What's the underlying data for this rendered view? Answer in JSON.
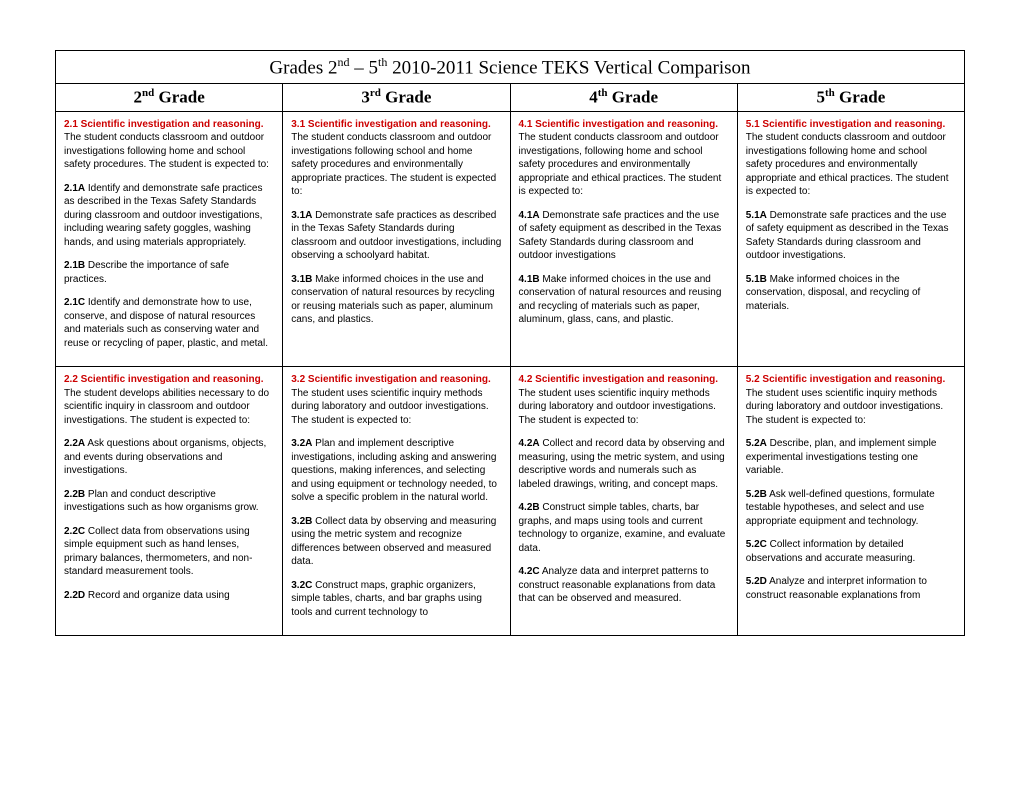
{
  "colors": {
    "heading_red": "#cc0000",
    "text": "#000000",
    "border": "#000000",
    "background": "#ffffff"
  },
  "typography": {
    "title_fontsize": 19,
    "grade_header_fontsize": 17,
    "body_fontsize": 10,
    "title_font": "Times New Roman",
    "body_font": "Arial"
  },
  "title": {
    "prefix": "Grades 2",
    "sup1": "nd",
    "mid": " – 5",
    "sup2": "th",
    "suffix": "   2010-2011 Science TEKS  Vertical Comparison"
  },
  "grade_headers": [
    {
      "num": "2",
      "sup": "nd",
      "label": " Grade"
    },
    {
      "num": "3",
      "sup": "rd",
      "label": " Grade"
    },
    {
      "num": "4",
      "sup": "th",
      "label": "  Grade"
    },
    {
      "num": "5",
      "sup": "th",
      "label": "  Grade"
    }
  ],
  "row1": {
    "col0": {
      "heading": "2.1 Scientific investigation and reasoning.",
      "intro": " The student conducts classroom and outdoor investigations following home and school safety procedures. The student is expected to:",
      "items": [
        {
          "code": "2.1A",
          "text": " Identify and demonstrate safe practices as described in the Texas Safety Standards during classroom and outdoor investigations, including wearing safety goggles, washing hands, and using materials appropriately."
        },
        {
          "code": "2.1B",
          "text": " Describe the importance of safe practices."
        },
        {
          "code": "2.1C",
          "text": " Identify and demonstrate how to use, conserve, and dispose of natural resources and materials such as conserving water and reuse or recycling of paper, plastic, and metal."
        }
      ]
    },
    "col1": {
      "heading": "3.1 Scientific investigation and reasoning.",
      "intro": "  The student conducts classroom and outdoor investigations following school and home safety procedures and environmentally appropriate practices.  The student is expected to:",
      "items": [
        {
          "code": "3.1A",
          "text": " Demonstrate safe practices as described in the Texas Safety Standards during classroom and outdoor investigations, including observing a schoolyard habitat."
        },
        {
          "code": "3.1B",
          "text": " Make informed choices in the use and conservation of natural resources by recycling or reusing materials such as paper, aluminum cans, and plastics."
        }
      ]
    },
    "col2": {
      "heading": "4.1 Scientific investigation and reasoning.",
      "intro": "  The student conducts classroom and outdoor investigations, following home and school safety procedures and environmentally appropriate and ethical practices.  The student is expected to:",
      "items": [
        {
          "code": "4.1A",
          "text": " Demonstrate safe practices and the use of safety equipment as described in the Texas Safety Standards during classroom and outdoor investigations"
        },
        {
          "code": "4.1B",
          "text": " Make informed choices in the use and conservation of natural resources and reusing and recycling of materials such as paper, aluminum, glass, cans, and plastic."
        }
      ]
    },
    "col3": {
      "heading": "5.1 Scientific investigation and reasoning.",
      "intro": " The student conducts classroom and outdoor investigations following home and school safety procedures and environmentally appropriate and ethical practices.  The student is expected to:",
      "items": [
        {
          "code": "5.1A",
          "text": " Demonstrate safe practices and the use of safety equipment as described in the Texas Safety Standards during classroom and outdoor investigations."
        },
        {
          "code": "5.1B",
          "text": " Make informed choices in the conservation, disposal, and recycling of materials."
        }
      ]
    }
  },
  "row2": {
    "col0": {
      "heading": "2.2 Scientific investigation and reasoning.",
      "intro": " The student develops abilities necessary to do scientific inquiry in classroom and outdoor investigations.  The student is expected to:",
      "items": [
        {
          "code": "2.2A",
          "text": " Ask questions about organisms, objects, and events during observations and investigations."
        },
        {
          "code": "2.2B",
          "text": " Plan and conduct descriptive investigations such as how organisms grow."
        },
        {
          "code": "2.2C",
          "text": " Collect data from observations using simple equipment such as hand lenses, primary balances, thermometers, and non-standard measurement tools."
        },
        {
          "code": "2.2D",
          "text": " Record and organize data using"
        }
      ]
    },
    "col1": {
      "heading": "3.2 Scientific investigation and reasoning.",
      "intro": "  The student uses scientific inquiry methods during laboratory and outdoor investigations.  The student is expected to:",
      "items": [
        {
          "code": "3.2A",
          "text": " Plan and implement descriptive investigations, including asking and answering questions, making inferences, and selecting and using equipment or technology needed, to solve a specific problem in the natural world."
        },
        {
          "code": "3.2B",
          "text": " Collect data by observing and measuring using the metric system and recognize differences between observed and measured data."
        },
        {
          "code": "3.2C",
          "text": " Construct maps, graphic organizers, simple tables, charts, and bar graphs using tools and current technology to"
        }
      ]
    },
    "col2": {
      "heading": "4.2 Scientific investigation and reasoning.",
      "intro": " The student uses scientific inquiry methods during laboratory and outdoor investigations.  The student is expected to:",
      "items": [
        {
          "code": "4.2A",
          "text": " Collect and record data by observing and measuring, using the metric system, and using descriptive words and numerals such as labeled drawings, writing, and concept maps."
        },
        {
          "code": "4.2B",
          "text": " Construct simple tables, charts, bar graphs, and maps using tools and current technology to organize, examine, and evaluate data."
        },
        {
          "code": "4.2C",
          "text": " Analyze data and interpret patterns to construct reasonable explanations from data that can be observed and measured."
        }
      ]
    },
    "col3": {
      "heading": "5.2 Scientific investigation and reasoning.",
      "intro": "  The student uses scientific inquiry methods during laboratory and outdoor investigations.  The student is expected to:",
      "items": [
        {
          "code": "5.2A",
          "text": " Describe, plan, and implement simple experimental investigations testing one variable."
        },
        {
          "code": "5.2B",
          "text": " Ask well-defined questions, formulate testable hypotheses, and select and use appropriate equipment and technology."
        },
        {
          "code": "5.2C",
          "text": " Collect information by detailed observations and accurate measuring."
        },
        {
          "code": "5.2D",
          "text": " Analyze and interpret information to construct reasonable explanations from"
        }
      ]
    }
  }
}
